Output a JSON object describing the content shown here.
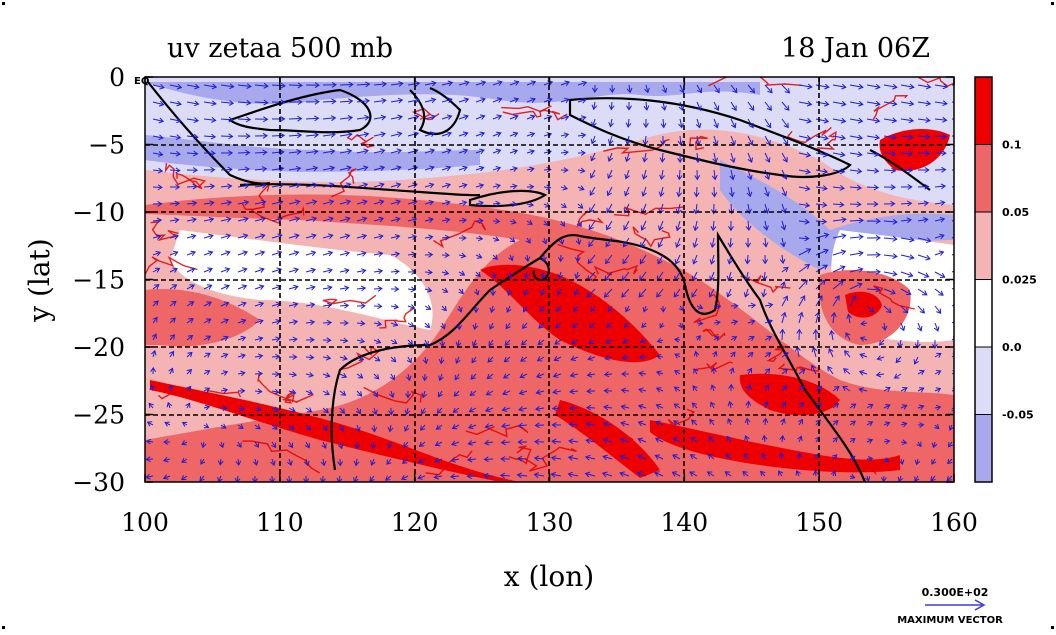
{
  "chart_data": {
    "type": "heatmap",
    "title_left": "uv zetaa 500 mb",
    "title_right": "18 Jan 06Z",
    "xlabel": "x (lon)",
    "ylabel": "y (lat)",
    "xlim": [
      100,
      160
    ],
    "ylim": [
      -30,
      0
    ],
    "x_ticks": [
      {
        "value": 100,
        "label": "100"
      },
      {
        "value": 110,
        "label": "110"
      },
      {
        "value": 120,
        "label": "120"
      },
      {
        "value": 130,
        "label": "130"
      },
      {
        "value": 140,
        "label": "140"
      },
      {
        "value": 150,
        "label": "150"
      },
      {
        "value": 160,
        "label": "160"
      }
    ],
    "y_ticks": [
      {
        "value": 0,
        "label": "0"
      },
      {
        "value": -5,
        "label": "−5"
      },
      {
        "value": -10,
        "label": "−10"
      },
      {
        "value": -15,
        "label": "−15"
      },
      {
        "value": -20,
        "label": "−20"
      },
      {
        "value": -25,
        "label": "−25"
      },
      {
        "value": -30,
        "label": "−30"
      }
    ],
    "corner_label": "EQ",
    "grid": true,
    "grid_style": "dashed",
    "colorbar": {
      "placement": "right",
      "levels": [
        {
          "label": "0.1",
          "color": "#ee0000"
        },
        {
          "label": "0.05",
          "color": "#ee6666"
        },
        {
          "label": "0.025",
          "color": "#f4b4b4"
        },
        {
          "label": "0.0",
          "color": "#ffffff"
        },
        {
          "label": "-0.05",
          "color": "#dcdcf7"
        },
        {
          "label": "",
          "color": "#a8a8ec"
        }
      ]
    },
    "vector_legend": {
      "value": "0.300E+02",
      "label": "MAXIMUM VECTOR",
      "color": "#3a3ad8"
    },
    "colors": {
      "vector": "#1e1ed8",
      "contour_line": "#e00000",
      "coastline": "#000000"
    }
  }
}
